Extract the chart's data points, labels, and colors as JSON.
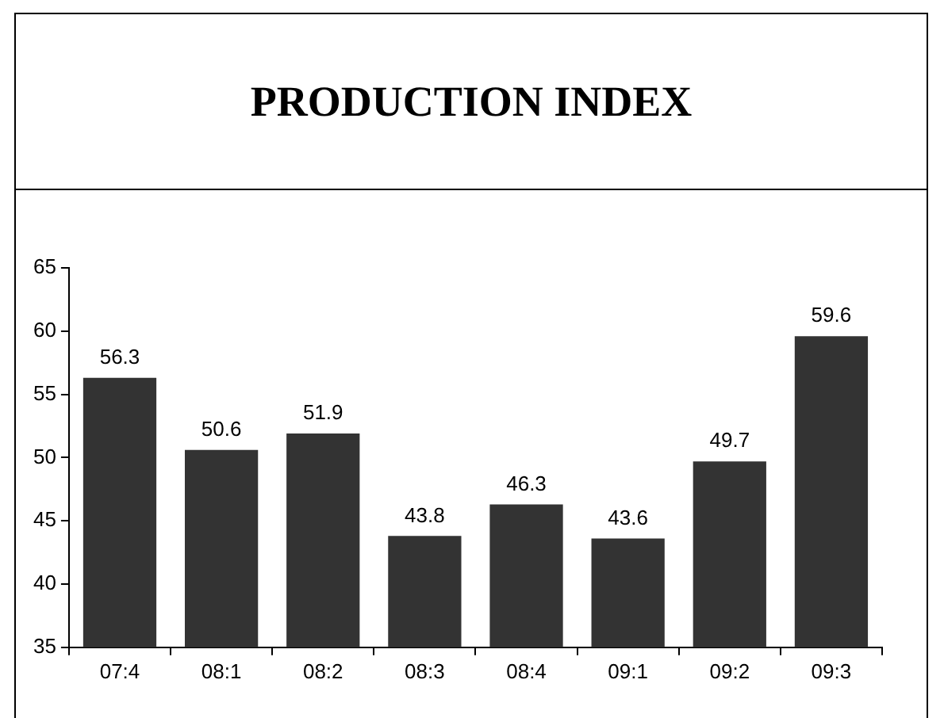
{
  "chart_data": {
    "type": "bar",
    "title": "PRODUCTION INDEX",
    "categories": [
      "07:4",
      "08:1",
      "08:2",
      "08:3",
      "08:4",
      "09:1",
      "09:2",
      "09:3"
    ],
    "values": [
      56.3,
      50.6,
      51.9,
      43.8,
      46.3,
      43.6,
      49.7,
      59.6
    ],
    "color": "#333333",
    "ylim": [
      35,
      65
    ],
    "yticks": [
      35,
      40,
      45,
      50,
      55,
      60,
      65
    ],
    "data_labels": true,
    "legend": false
  }
}
